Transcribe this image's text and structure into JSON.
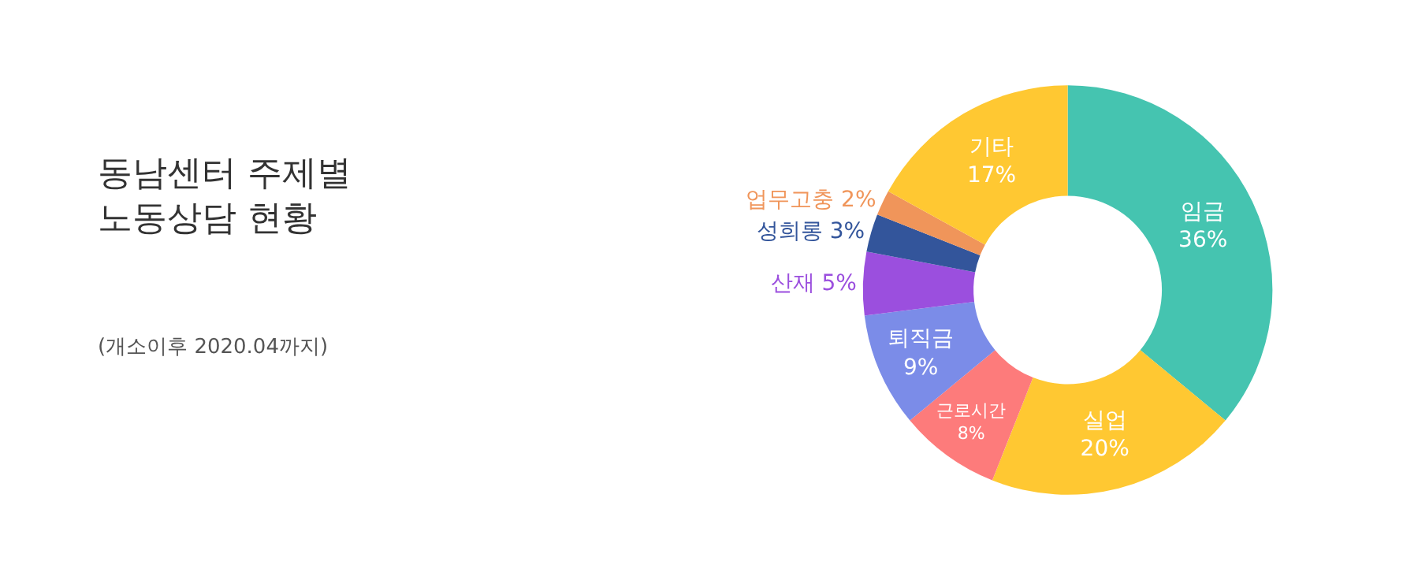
{
  "chart_data": {
    "type": "donut",
    "title": "동남센터 주제별\n노동상담 현황",
    "subtitle": "(개소이후 2020.04까지)",
    "categories": [
      "임금",
      "실업",
      "근로시간",
      "퇴직금",
      "산재",
      "성희롱",
      "업무고충",
      "기타"
    ],
    "values": [
      36,
      20,
      8,
      9,
      5,
      3,
      2,
      17
    ],
    "value_labels": [
      "36%",
      "20%",
      "8%",
      "9%",
      "5%",
      "3%",
      "2%",
      "17%"
    ],
    "colors": [
      "#45c4b0",
      "#ffc832",
      "#fd7b7b",
      "#7b8ce8",
      "#9b4fde",
      "#33559b",
      "#f0955a",
      "#ffc832"
    ],
    "legend": false
  }
}
